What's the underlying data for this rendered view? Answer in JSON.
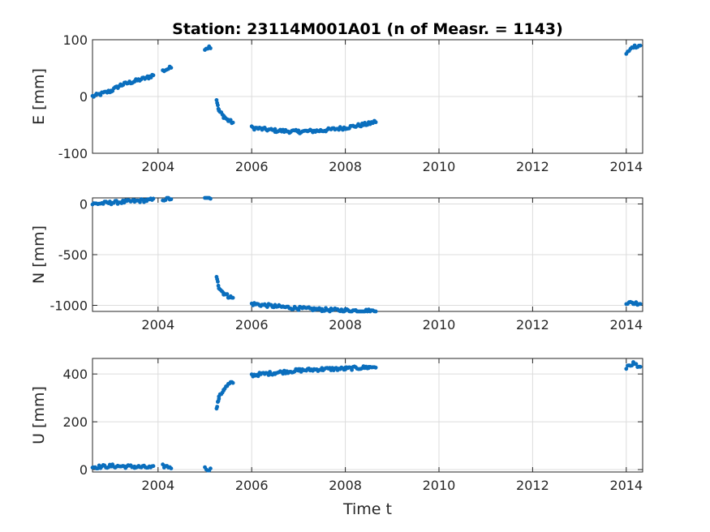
{
  "chart_data": {
    "type": "scatter",
    "title": "Station: 23114M001A01 (n of Measr. = 1143)",
    "xlabel": "Time t",
    "x_ticks": [
      "2004",
      "2006",
      "2008",
      "2010",
      "2012",
      "2014"
    ],
    "xlim": [
      2002.6,
      2014.35
    ],
    "grid": true,
    "color": "#0a6ebd",
    "panels": [
      {
        "ylabel": "E [mm]",
        "ylim": [
          -100,
          100
        ],
        "y_ticks": [
          -100,
          0,
          100
        ],
        "y_tick_labels": [
          "-100",
          "0",
          "100"
        ],
        "series": [
          {
            "x": [
              2002.6,
              2003.0,
              2003.2,
              2003.5,
              2003.8,
              2003.9
            ],
            "y": [
              0,
              10,
              20,
              27,
              34,
              38
            ]
          },
          {
            "x": [
              2004.1,
              2004.28
            ],
            "y": [
              45,
              51
            ]
          },
          {
            "x": [
              2005.0,
              2005.12
            ],
            "y": [
              85,
              88
            ]
          },
          {
            "x": [
              2005.25,
              2005.3,
              2005.4,
              2005.5,
              2005.6
            ],
            "y": [
              -5,
              -25,
              -35,
              -42,
              -46
            ]
          },
          {
            "x": [
              2006.0,
              2006.5,
              2007.0,
              2007.5,
              2008.0,
              2008.5,
              2008.65
            ],
            "y": [
              -55,
              -60,
              -62,
              -60,
              -55,
              -48,
              -44
            ]
          },
          {
            "x": [
              2014.0,
              2014.15,
              2014.3
            ],
            "y": [
              75,
              88,
              90
            ]
          }
        ]
      },
      {
        "ylabel": "N [mm]",
        "ylim": [
          -1060,
          60
        ],
        "y_ticks": [
          0,
          -500,
          -1000
        ],
        "y_tick_labels": [
          "0",
          "-500",
          "-1000"
        ],
        "series": [
          {
            "x": [
              2002.6,
              2003.0,
              2003.5,
              2003.9
            ],
            "y": [
              0,
              12,
              28,
              40
            ]
          },
          {
            "x": [
              2004.1,
              2004.28
            ],
            "y": [
              45,
              52
            ]
          },
          {
            "x": [
              2005.0,
              2005.12
            ],
            "y": [
              60,
              62
            ]
          },
          {
            "x": [
              2005.25,
              2005.3,
              2005.4,
              2005.5,
              2005.6
            ],
            "y": [
              -730,
              -820,
              -880,
              -910,
              -930
            ]
          },
          {
            "x": [
              2006.0,
              2006.5,
              2007.0,
              2007.5,
              2008.0,
              2008.5,
              2008.65
            ],
            "y": [
              -985,
              -1010,
              -1030,
              -1042,
              -1050,
              -1055,
              -1057
            ]
          },
          {
            "x": [
              2014.0,
              2014.15,
              2014.3
            ],
            "y": [
              -975,
              -978,
              -980
            ]
          }
        ]
      },
      {
        "ylabel": "U [mm]",
        "ylim": [
          -10,
          465
        ],
        "y_ticks": [
          0,
          200,
          400
        ],
        "y_tick_labels": [
          "0",
          "200",
          "400"
        ],
        "series": [
          {
            "x": [
              2002.6,
              2003.0,
              2003.5,
              2003.9
            ],
            "y": [
              10,
              15,
              12,
              8
            ]
          },
          {
            "x": [
              2004.1,
              2004.28
            ],
            "y": [
              15,
              10
            ]
          },
          {
            "x": [
              2005.0,
              2005.12
            ],
            "y": [
              5,
              0
            ]
          },
          {
            "x": [
              2005.25,
              2005.3,
              2005.4,
              2005.5,
              2005.6
            ],
            "y": [
              260,
              300,
              335,
              355,
              365
            ]
          },
          {
            "x": [
              2006.0,
              2006.5,
              2007.0,
              2007.5,
              2008.0,
              2008.5,
              2008.65
            ],
            "y": [
              395,
              405,
              415,
              420,
              422,
              428,
              430
            ]
          },
          {
            "x": [
              2014.0,
              2014.15,
              2014.3
            ],
            "y": [
              425,
              445,
              430
            ]
          }
        ]
      }
    ]
  }
}
